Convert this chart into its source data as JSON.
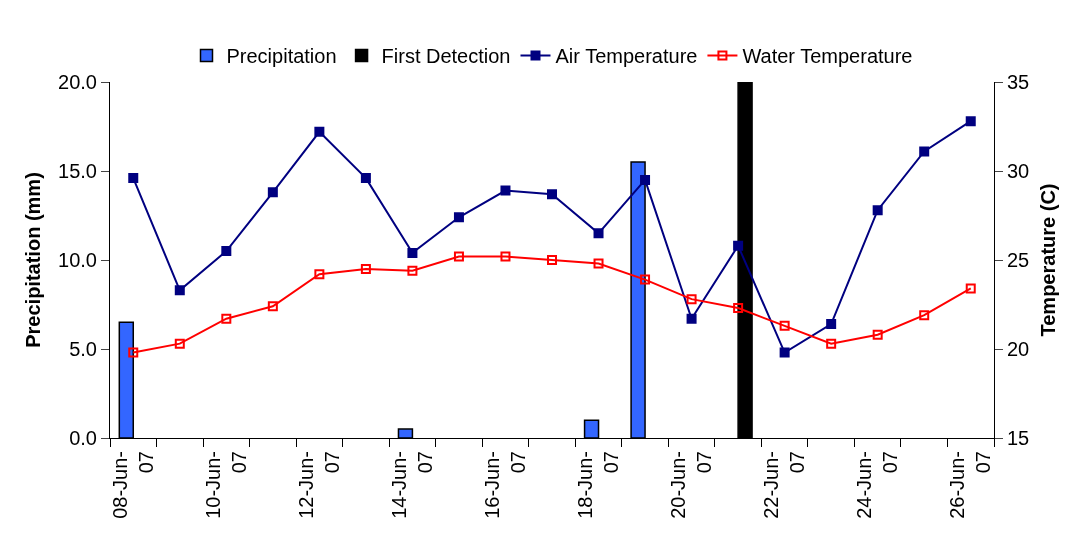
{
  "chart_data": {
    "type": "bar",
    "categories": [
      "08-Jun-07",
      null,
      "10-Jun-07",
      null,
      "12-Jun-07",
      null,
      "14-Jun-07",
      null,
      "16-Jun-07",
      null,
      "18-Jun-07",
      null,
      "20-Jun-07",
      null,
      "22-Jun-07",
      null,
      "24-Jun-07",
      null,
      "26-Jun-07"
    ],
    "series": [
      {
        "name": "Precipitation",
        "color": "#3366ff",
        "values": [
          6.5,
          null,
          null,
          null,
          null,
          null,
          0.5,
          null,
          null,
          null,
          1.0,
          15.5,
          null,
          null,
          null,
          null,
          null,
          null,
          null
        ]
      },
      {
        "name": "First Detection",
        "color": "#000000",
        "values": [
          null,
          null,
          null,
          null,
          null,
          null,
          null,
          null,
          null,
          null,
          null,
          null,
          null,
          20,
          null,
          null,
          null,
          null,
          null
        ]
      },
      {
        "name": "Air Temperature",
        "type": "line",
        "axis": "y2",
        "color": "#000080",
        "marker": "square",
        "values": [
          29.6,
          23.3,
          25.5,
          28.8,
          32.2,
          29.6,
          25.4,
          27.4,
          28.9,
          28.7,
          26.5,
          29.5,
          21.7,
          25.8,
          19.8,
          21.4,
          27.8,
          31.1,
          32.8
        ]
      },
      {
        "name": "Water Temperature",
        "type": "line",
        "axis": "y2",
        "color": "#ff0000",
        "marker": "square",
        "values": [
          19.8,
          20.3,
          21.7,
          22.4,
          24.2,
          24.5,
          24.4,
          25.2,
          25.2,
          25.0,
          24.8,
          23.9,
          22.8,
          22.3,
          21.3,
          20.3,
          20.8,
          21.9,
          23.4
        ]
      }
    ],
    "ylabel": "Precipitation (mm)",
    "y2label": "Temperature (C)",
    "ylim": [
      0,
      20
    ],
    "yticks": [
      {
        "value": 0,
        "label": "0.0"
      },
      {
        "value": 5,
        "label": "5.0"
      },
      {
        "value": 10,
        "label": "10.0"
      },
      {
        "value": 15,
        "label": "15.0"
      },
      {
        "value": 20,
        "label": "20.0"
      }
    ],
    "y2lim": [
      15,
      35
    ],
    "y2ticks": [
      15,
      20,
      25,
      30,
      35
    ],
    "grid": false,
    "legend": "top"
  }
}
